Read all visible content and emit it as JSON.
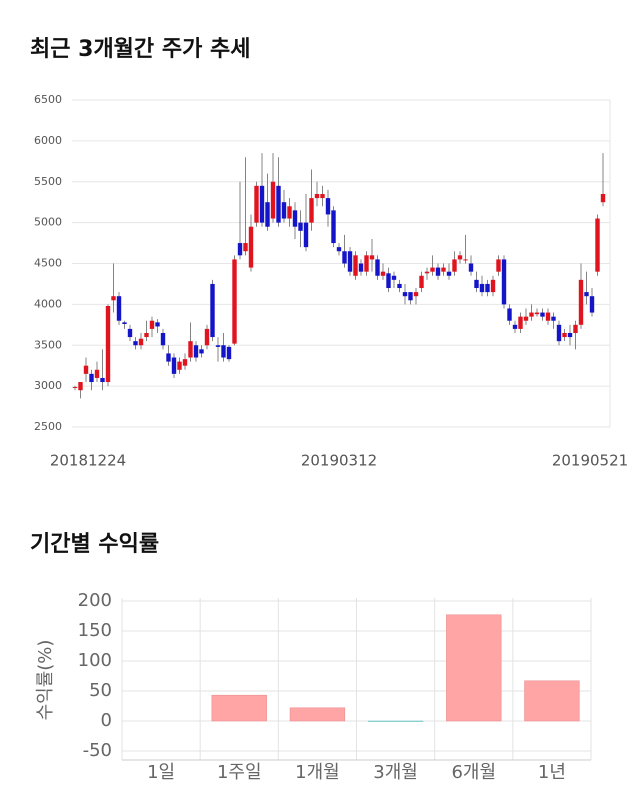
{
  "chart_data": [
    {
      "type": "candlestick",
      "title": "최근 3개월간 주가 추세",
      "categories": [
        "20181224",
        null,
        null,
        null,
        null,
        null,
        null,
        null,
        null,
        null,
        null,
        null,
        null,
        null,
        null,
        null,
        null,
        null,
        null,
        null,
        null,
        null,
        null,
        null,
        null,
        null,
        null,
        null,
        null,
        null,
        null,
        null,
        null,
        null,
        null,
        null,
        null,
        null,
        null,
        null,
        null,
        null,
        null,
        null,
        null,
        null,
        null,
        null,
        "20190312",
        null,
        null,
        null,
        null,
        null,
        null,
        null,
        null,
        null,
        null,
        null,
        null,
        null,
        null,
        null,
        null,
        null,
        null,
        null,
        null,
        null,
        null,
        null,
        null,
        null,
        null,
        null,
        null,
        null,
        null,
        null,
        null,
        null,
        null,
        null,
        null,
        null,
        null,
        null,
        null,
        null,
        null,
        null,
        null,
        null,
        null,
        null,
        "20190521"
      ],
      "open": [
        2980,
        2950,
        3150,
        3150,
        3100,
        3100,
        3050,
        4050,
        4100,
        3780,
        3700,
        3550,
        3500,
        3600,
        3700,
        3780,
        3650,
        3400,
        3350,
        3200,
        3250,
        3350,
        3500,
        3450,
        3500,
        4250,
        3500,
        3500,
        3480,
        3520,
        4750,
        4650,
        4450,
        5000,
        5450,
        5250,
        5050,
        5450,
        5250,
        5050,
        5150,
        5000,
        5000,
        5000,
        5300,
        5300,
        5300,
        5150,
        4700,
        4650,
        4650,
        4350,
        4500,
        4400,
        4550,
        4550,
        4350,
        4380,
        4350,
        4250,
        4150,
        4150,
        4100,
        4200,
        4380,
        4400,
        4450,
        4400,
        4400,
        4400,
        4550,
        4550,
        4500,
        4300,
        4250,
        4250,
        4150,
        4400,
        4550,
        3950,
        3750,
        3700,
        3800,
        3850,
        3880,
        3900,
        3800,
        3850,
        3750,
        3600,
        3650,
        3650,
        3750,
        4150,
        4100,
        4400,
        5250
      ],
      "high": [
        3000,
        3050,
        3350,
        3200,
        3300,
        3450,
        4000,
        4500,
        4150,
        3800,
        3750,
        3600,
        3650,
        3800,
        3850,
        3820,
        3700,
        3500,
        3400,
        3350,
        3400,
        3780,
        3550,
        3500,
        3750,
        4300,
        3600,
        3650,
        3500,
        4600,
        5500,
        5800,
        5100,
        5500,
        5850,
        5600,
        5850,
        5800,
        5400,
        5300,
        5250,
        5150,
        5350,
        5650,
        5500,
        5450,
        5400,
        5200,
        4750,
        4850,
        4700,
        4650,
        4550,
        4650,
        4800,
        4600,
        4500,
        4450,
        4400,
        4300,
        4250,
        4150,
        4200,
        4400,
        4450,
        4600,
        4500,
        4500,
        4500,
        4650,
        4650,
        4850,
        4600,
        4400,
        4350,
        4300,
        4350,
        4600,
        4600,
        4000,
        3800,
        3900,
        3950,
        4000,
        3950,
        3950,
        3950,
        3900,
        3800,
        3700,
        3750,
        3800,
        4500,
        4400,
        4200,
        5100,
        5850
      ],
      "low": [
        2950,
        2850,
        3050,
        2950,
        3050,
        2950,
        3000,
        3900,
        3750,
        3700,
        3550,
        3450,
        3450,
        3550,
        3600,
        3650,
        3450,
        3250,
        3100,
        3150,
        3200,
        3300,
        3300,
        3350,
        3450,
        3550,
        3300,
        3300,
        3300,
        3500,
        4550,
        4600,
        4400,
        4950,
        4950,
        4900,
        5000,
        4950,
        5000,
        4950,
        4800,
        4700,
        4650,
        4900,
        5200,
        5200,
        4950,
        4700,
        4600,
        4450,
        4350,
        4300,
        4350,
        4350,
        4400,
        4300,
        4300,
        4150,
        4200,
        4150,
        4000,
        4000,
        4000,
        4150,
        4300,
        4350,
        4300,
        4350,
        4300,
        4350,
        4500,
        4500,
        4350,
        4150,
        4100,
        4100,
        4100,
        4350,
        3950,
        3750,
        3650,
        3650,
        3750,
        3800,
        3850,
        3800,
        3750,
        3700,
        3500,
        3550,
        3500,
        3450,
        3700,
        4000,
        3850,
        4350,
        5200
      ],
      "close": [
        2990,
        3050,
        3250,
        3050,
        3200,
        3050,
        3980,
        4100,
        3800,
        3760,
        3600,
        3500,
        3580,
        3650,
        3800,
        3730,
        3500,
        3300,
        3150,
        3300,
        3330,
        3550,
        3350,
        3400,
        3700,
        3600,
        3480,
        3350,
        3330,
        4550,
        4600,
        4750,
        4950,
        5450,
        5000,
        4950,
        5500,
        5000,
        5050,
        5200,
        4950,
        4900,
        4700,
        5300,
        5350,
        5350,
        5100,
        4750,
        4650,
        4500,
        4400,
        4600,
        4400,
        4600,
        4600,
        4350,
        4400,
        4200,
        4300,
        4200,
        4100,
        4050,
        4150,
        4350,
        4400,
        4450,
        4350,
        4450,
        4350,
        4550,
        4600,
        4550,
        4400,
        4200,
        4150,
        4150,
        4300,
        4550,
        4000,
        3800,
        3700,
        3850,
        3850,
        3900,
        3900,
        3850,
        3900,
        3800,
        3550,
        3650,
        3600,
        3750,
        4300,
        4100,
        3900,
        5050,
        5350
      ],
      "up_color": "#e0141e",
      "down_color": "#1414c8",
      "ylim": [
        2500,
        6500
      ],
      "yticks": [
        2500,
        3000,
        3500,
        4000,
        4500,
        5000,
        5500,
        6000,
        6500
      ],
      "grid": true
    },
    {
      "type": "bar",
      "title": "기간별 수익률",
      "ylabel": "수익률(%)",
      "categories": [
        "1일",
        "1주일",
        "1개월",
        "3개월",
        "6개월",
        "1년"
      ],
      "values": [
        0,
        43,
        22,
        -1,
        177,
        67
      ],
      "color": "#ffa5a5",
      "negative_color": "#7fcccc",
      "ylim": [
        -65,
        205
      ],
      "yticks": [
        -50,
        0,
        50,
        100,
        150,
        200
      ],
      "grid": true
    }
  ]
}
